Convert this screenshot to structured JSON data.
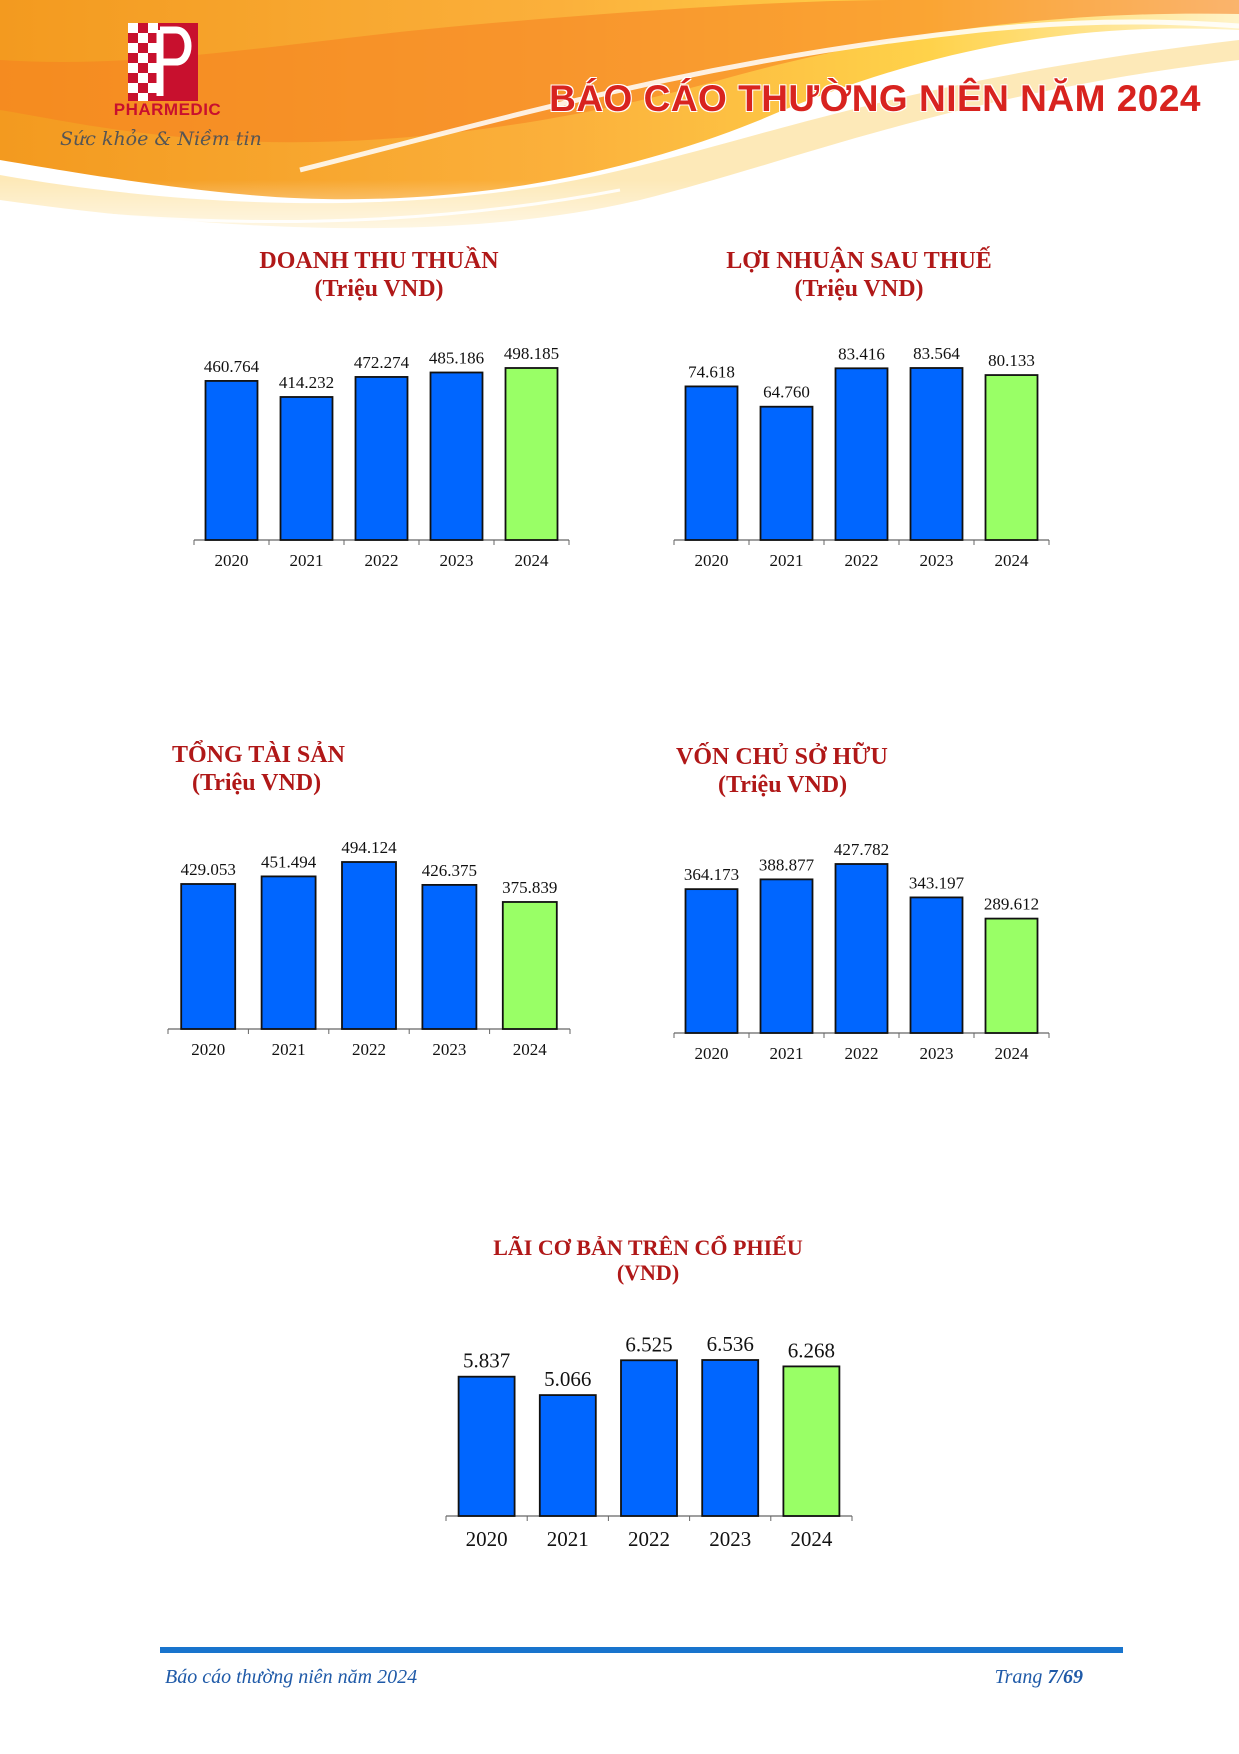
{
  "header": {
    "brand": "PHARMEDIC",
    "slogan": "Sức khỏe & Niềm tin",
    "report_title": "BÁO CÁO THƯỜNG NIÊN NĂM 2024",
    "colors": {
      "brand_red": "#c8102e",
      "banner_orange": "#f7941d",
      "banner_yellow": "#ffd200"
    }
  },
  "colors": {
    "bar": "#0066ff",
    "highlight": "#99ff66",
    "title": "#b01818",
    "footer": "#1f5aa8"
  },
  "chart_data": [
    {
      "type": "bar",
      "title": "DOANH THU THUẦN",
      "subtitle": "(Triệu VND)",
      "categories": [
        "2020",
        "2021",
        "2022",
        "2023",
        "2024"
      ],
      "values": [
        460764,
        414232,
        472274,
        485186,
        498185
      ],
      "value_labels": [
        "460.764",
        "414.232",
        "472.274",
        "485.186",
        "498.185"
      ],
      "highlight_index": 4
    },
    {
      "type": "bar",
      "title": "LỢI NHUẬN SAU THUẾ",
      "subtitle": "(Triệu VND)",
      "categories": [
        "2020",
        "2021",
        "2022",
        "2023",
        "2024"
      ],
      "values": [
        74618,
        64760,
        83416,
        83564,
        80133
      ],
      "value_labels": [
        "74.618",
        "64.760",
        "83.416",
        "83.564",
        "80.133"
      ],
      "highlight_index": 4
    },
    {
      "type": "bar",
      "title": "TỔNG TÀI SẢN",
      "subtitle": "(Triệu VND)",
      "categories": [
        "2020",
        "2021",
        "2022",
        "2023",
        "2024"
      ],
      "values": [
        429053,
        451494,
        494124,
        426375,
        375839
      ],
      "value_labels": [
        "429.053",
        "451.494",
        "494.124",
        "426.375",
        "375.839"
      ],
      "highlight_index": 4
    },
    {
      "type": "bar",
      "title": "VỐN CHỦ SỞ HỮU",
      "subtitle": "(Triệu VND)",
      "categories": [
        "2020",
        "2021",
        "2022",
        "2023",
        "2024"
      ],
      "values": [
        364173,
        388877,
        427782,
        343197,
        289612
      ],
      "value_labels": [
        "364.173",
        "388.877",
        "427.782",
        "343.197",
        "289.612"
      ],
      "highlight_index": 4
    },
    {
      "type": "bar",
      "title": "LÃI CƠ BẢN TRÊN CỔ PHIẾU",
      "subtitle": "(VND)",
      "categories": [
        "2020",
        "2021",
        "2022",
        "2023",
        "2024"
      ],
      "values": [
        5837,
        5066,
        6525,
        6536,
        6268
      ],
      "value_labels": [
        "5.837",
        "5.066",
        "6.525",
        "6.536",
        "6.268"
      ],
      "highlight_index": 4
    }
  ],
  "footer": {
    "left": "Báo cáo thường niên năm 2024",
    "page_prefix": "Trang ",
    "page": "7/69"
  }
}
